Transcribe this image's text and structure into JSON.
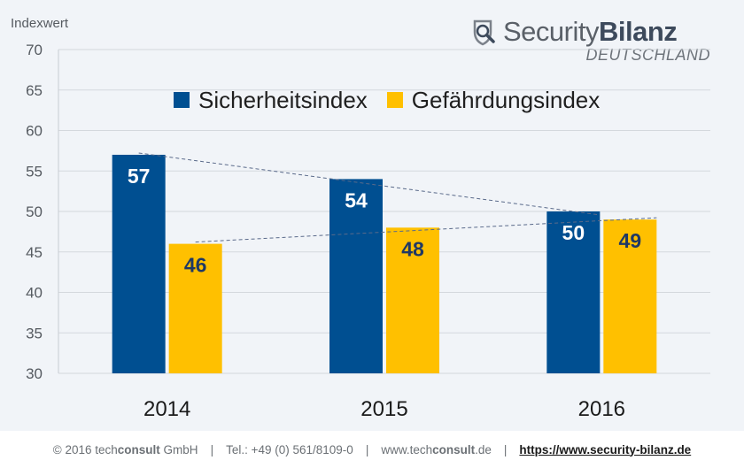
{
  "chart_data": {
    "type": "bar",
    "ylabel": "Indexwert",
    "ylim": [
      30,
      70
    ],
    "yticks": [
      30,
      35,
      40,
      45,
      50,
      55,
      60,
      65,
      70
    ],
    "grid": true,
    "legend_position": "top-center",
    "categories": [
      "2014",
      "2015",
      "2016"
    ],
    "series": [
      {
        "name": "Sicherheitsindex",
        "values": [
          57,
          54,
          50
        ],
        "color": "#004f91",
        "label_color": "#ffffff"
      },
      {
        "name": "Gefährdungsindex",
        "values": [
          46,
          48,
          49
        ],
        "color": "#ffc000",
        "label_color": "#1f3864"
      }
    ],
    "trendlines": true
  },
  "logo": {
    "brand_plain": "Security",
    "brand_bold": "Bilanz",
    "sub": "DEUTSCHLAND"
  },
  "footer": {
    "copyright_prefix": "© 2016 tech",
    "copyright_bold": "consult",
    "copyright_suffix": " GmbH",
    "separator": "|",
    "phone": "Tel.: +49 (0) 561/8109-0",
    "web_prefix": "www.tech",
    "web_bold": "consult",
    "web_suffix": ".de",
    "link": "https://www.security-bilanz.de"
  },
  "colors": {
    "background": "#f1f4f8",
    "grid": "#d4d8dd",
    "trendline": "#5a6a8a"
  }
}
